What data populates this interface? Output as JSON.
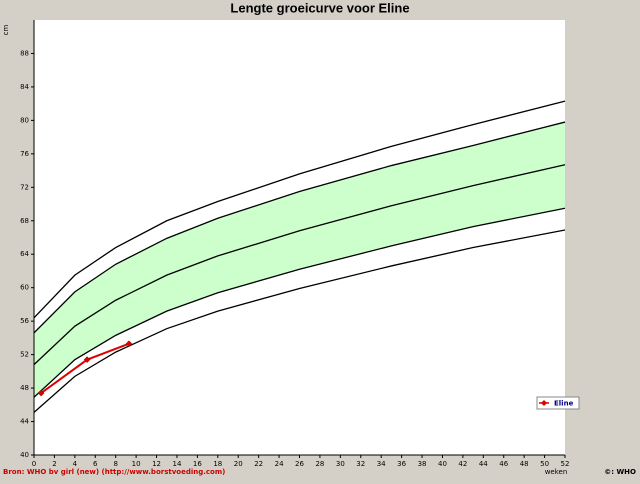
{
  "chart_data": {
    "type": "line",
    "title": "Lengte groeicurve voor Eline",
    "y_label": "cm",
    "x_label": "weken",
    "source": "Bron: WHO bv girl (new) (http://www.borstvoeding.com)",
    "copyright": "©: WHO",
    "x": [
      0,
      4,
      8,
      13,
      18,
      26,
      35,
      43,
      52
    ],
    "series": [
      {
        "color": "#000000",
        "values": [
          56.4,
          61.5,
          64.8,
          68.0,
          70.3,
          73.6,
          76.9,
          79.5,
          82.3
        ]
      },
      {
        "color": "#000000",
        "values": [
          54.6,
          59.5,
          62.8,
          65.9,
          68.3,
          71.5,
          74.6,
          77.0,
          79.8
        ]
      },
      {
        "color": "#000000",
        "values": [
          50.8,
          55.4,
          58.5,
          61.5,
          63.8,
          66.8,
          69.8,
          72.2,
          74.7
        ]
      },
      {
        "color": "#000000",
        "values": [
          46.9,
          51.4,
          54.3,
          57.2,
          59.4,
          62.2,
          65.0,
          67.3,
          69.5
        ]
      },
      {
        "color": "#000000",
        "values": [
          45.1,
          49.4,
          52.3,
          55.1,
          57.2,
          59.9,
          62.6,
          64.8,
          66.9
        ]
      },
      {
        "name": "Eline",
        "color": "#dd0000",
        "x": [
          0.7,
          5.2,
          9.3
        ],
        "values": [
          47.4,
          51.4,
          53.3
        ]
      }
    ],
    "band": {
      "between": [
        1,
        3
      ],
      "color": "#ccffcc"
    },
    "xlim": [
      0,
      52
    ],
    "xticks": [
      0,
      2,
      4,
      6,
      8,
      10,
      12,
      14,
      16,
      18,
      20,
      22,
      24,
      26,
      28,
      30,
      32,
      34,
      36,
      38,
      40,
      42,
      44,
      46,
      48,
      50,
      52
    ],
    "ylim": [
      40,
      92
    ],
    "yticks": [
      40,
      44,
      48,
      52,
      56,
      60,
      64,
      68,
      72,
      76,
      80,
      84,
      88
    ],
    "grid": false,
    "legend": "right"
  }
}
